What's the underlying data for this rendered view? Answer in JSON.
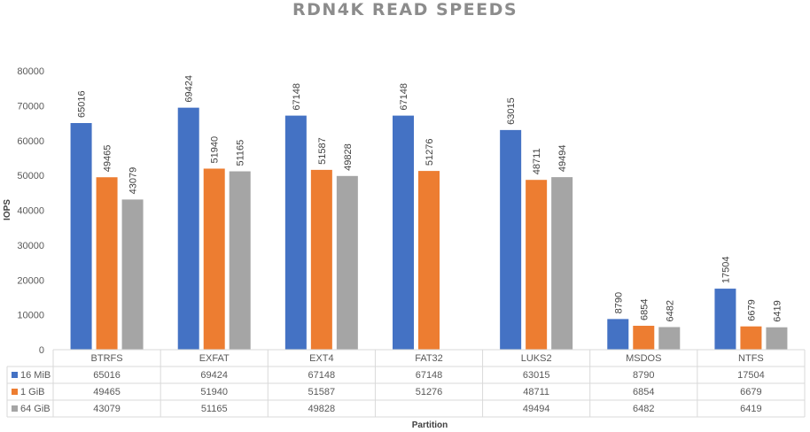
{
  "chart_data": {
    "type": "bar",
    "title": "RDN4K READ SPEEDS",
    "xlabel": "Partition",
    "ylabel": "IOPS",
    "ylim": [
      0,
      80000
    ],
    "yticks": [
      0,
      10000,
      20000,
      30000,
      40000,
      50000,
      60000,
      70000,
      80000
    ],
    "grid": false,
    "legend": "data-table",
    "categories": [
      "BTRFS",
      "EXFAT",
      "EXT4",
      "FAT32",
      "LUKS2",
      "MSDOS",
      "NTFS"
    ],
    "series": [
      {
        "name": "16 MiB",
        "color": "#4472c4",
        "values": [
          65016,
          69424,
          67148,
          67148,
          63015,
          8790,
          17504
        ]
      },
      {
        "name": "1 GiB",
        "color": "#ed7d31",
        "values": [
          49465,
          51940,
          51587,
          51276,
          48711,
          6854,
          6679
        ]
      },
      {
        "name": "64 GiB",
        "color": "#a5a5a5",
        "values": [
          43079,
          51165,
          49828,
          null,
          49494,
          6482,
          6419
        ]
      }
    ]
  }
}
